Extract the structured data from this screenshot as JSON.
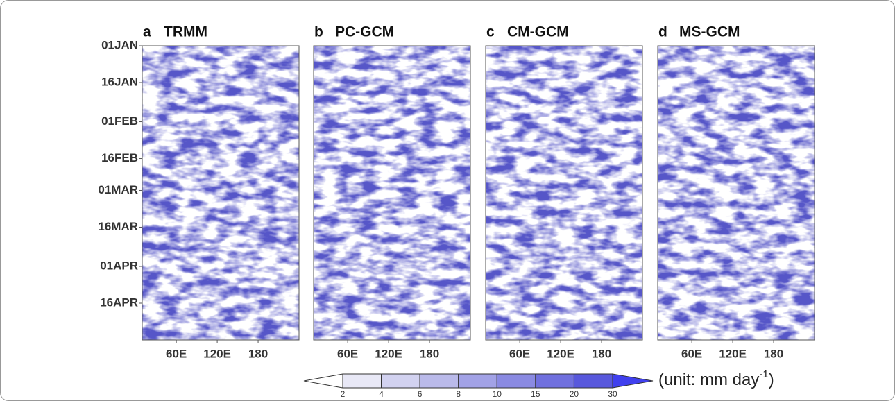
{
  "chart_data": [
    {
      "type": "hovmoller",
      "panel": "a",
      "title": "TRMM",
      "color": "#5656c8",
      "seed": 3,
      "xlim": [
        10,
        240
      ],
      "xticks": [
        {
          "value": 60,
          "label": "60E"
        },
        {
          "value": 120,
          "label": "120E"
        },
        180
      ],
      "ylim": [
        1,
        121
      ],
      "yticks": [
        {
          "value": 1,
          "label": "01JAN"
        },
        {
          "value": 16,
          "label": "16JAN"
        },
        {
          "value": 32,
          "label": "01FEB"
        },
        {
          "value": 47,
          "label": "16FEB"
        },
        {
          "value": 60,
          "label": "01MAR"
        },
        {
          "value": 75,
          "label": "16MAR"
        },
        {
          "value": 91,
          "label": "01APR"
        },
        {
          "value": 106,
          "label": "16APR"
        }
      ]
    },
    {
      "type": "hovmoller",
      "panel": "b",
      "title": "PC-GCM",
      "color": "#5656c8",
      "seed": 11,
      "xlim": [
        10,
        240
      ],
      "xticks": [
        {
          "value": 60,
          "label": "60E"
        },
        {
          "value": 120,
          "label": "120E"
        },
        180
      ],
      "ylim": [
        1,
        121
      ]
    },
    {
      "type": "hovmoller",
      "panel": "c",
      "title": "CM-GCM",
      "color": "#5656c8",
      "seed": 23,
      "xlim": [
        10,
        240
      ],
      "xticks": [
        {
          "value": 60,
          "label": "60E"
        },
        {
          "value": 120,
          "label": "120E"
        },
        180
      ],
      "ylim": [
        1,
        121
      ]
    },
    {
      "type": "hovmoller",
      "panel": "d",
      "title": "MS-GCM",
      "color": "#5656c8",
      "seed": 37,
      "xlim": [
        10,
        240
      ],
      "xticks": [
        {
          "value": 60,
          "label": "60E"
        },
        {
          "value": 120,
          "label": "120E"
        },
        180
      ],
      "ylim": [
        1,
        121
      ]
    }
  ],
  "colorbar": {
    "levels": [
      2,
      4,
      6,
      8,
      10,
      15,
      20,
      30
    ],
    "colors": [
      "#ffffff",
      "#e8e8f6",
      "#d2d2f0",
      "#babaea",
      "#a2a2e6",
      "#8a8ae2",
      "#7070de",
      "#5858dc",
      "#4040ee"
    ],
    "label": "(unit: mm day",
    "label_sup": "-1",
    "label_end": ")"
  }
}
